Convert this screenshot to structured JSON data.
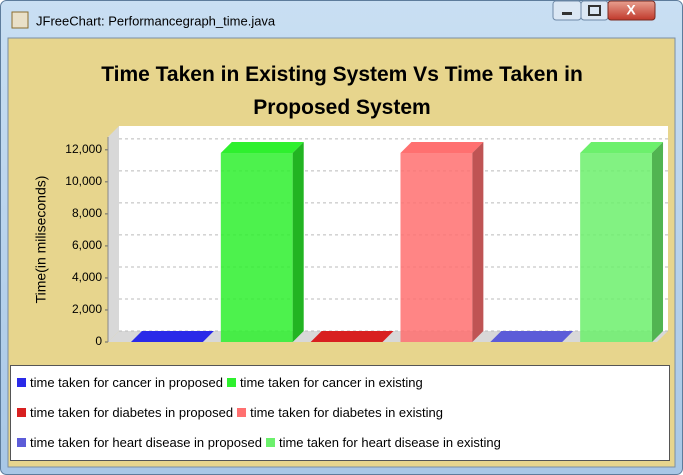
{
  "window_title": "JFreeChart: Performancegraph_time.java",
  "chart_data": {
    "type": "bar",
    "title": "Time Taken in Existing System Vs Time Taken in Proposed System",
    "y_label": "Time(in miliseconds)",
    "categories": [
      null
    ],
    "series": [
      {
        "name": "time taken for cancer in proposed",
        "color": "#2a2ae8",
        "values": [
          0
        ]
      },
      {
        "name": "time taken for cancer in existing",
        "color": "#2ef02e",
        "values": [
          11800
        ]
      },
      {
        "name": "time taken for diabetes in proposed",
        "color": "#d82020",
        "values": [
          0
        ]
      },
      {
        "name": "time taken for diabetes in existing",
        "color": "#ff7070",
        "values": [
          11800
        ]
      },
      {
        "name": "time taken for heart disease in proposed",
        "color": "#5c5cd8",
        "values": [
          0
        ]
      },
      {
        "name": "time taken for heart disease in existing",
        "color": "#6cf06c",
        "values": [
          11800
        ]
      }
    ],
    "ylim": [
      0,
      12800
    ],
    "yticks": [
      0,
      {
        "value": 2000,
        "label": "2,000"
      },
      {
        "value": 4000,
        "label": "4,000"
      },
      {
        "value": 6000,
        "label": "6,000"
      },
      {
        "value": 8000,
        "label": "8,000"
      },
      {
        "value": 10000,
        "label": "10,000"
      },
      {
        "value": 12000,
        "label": "12,000"
      }
    ],
    "grid": true
  }
}
